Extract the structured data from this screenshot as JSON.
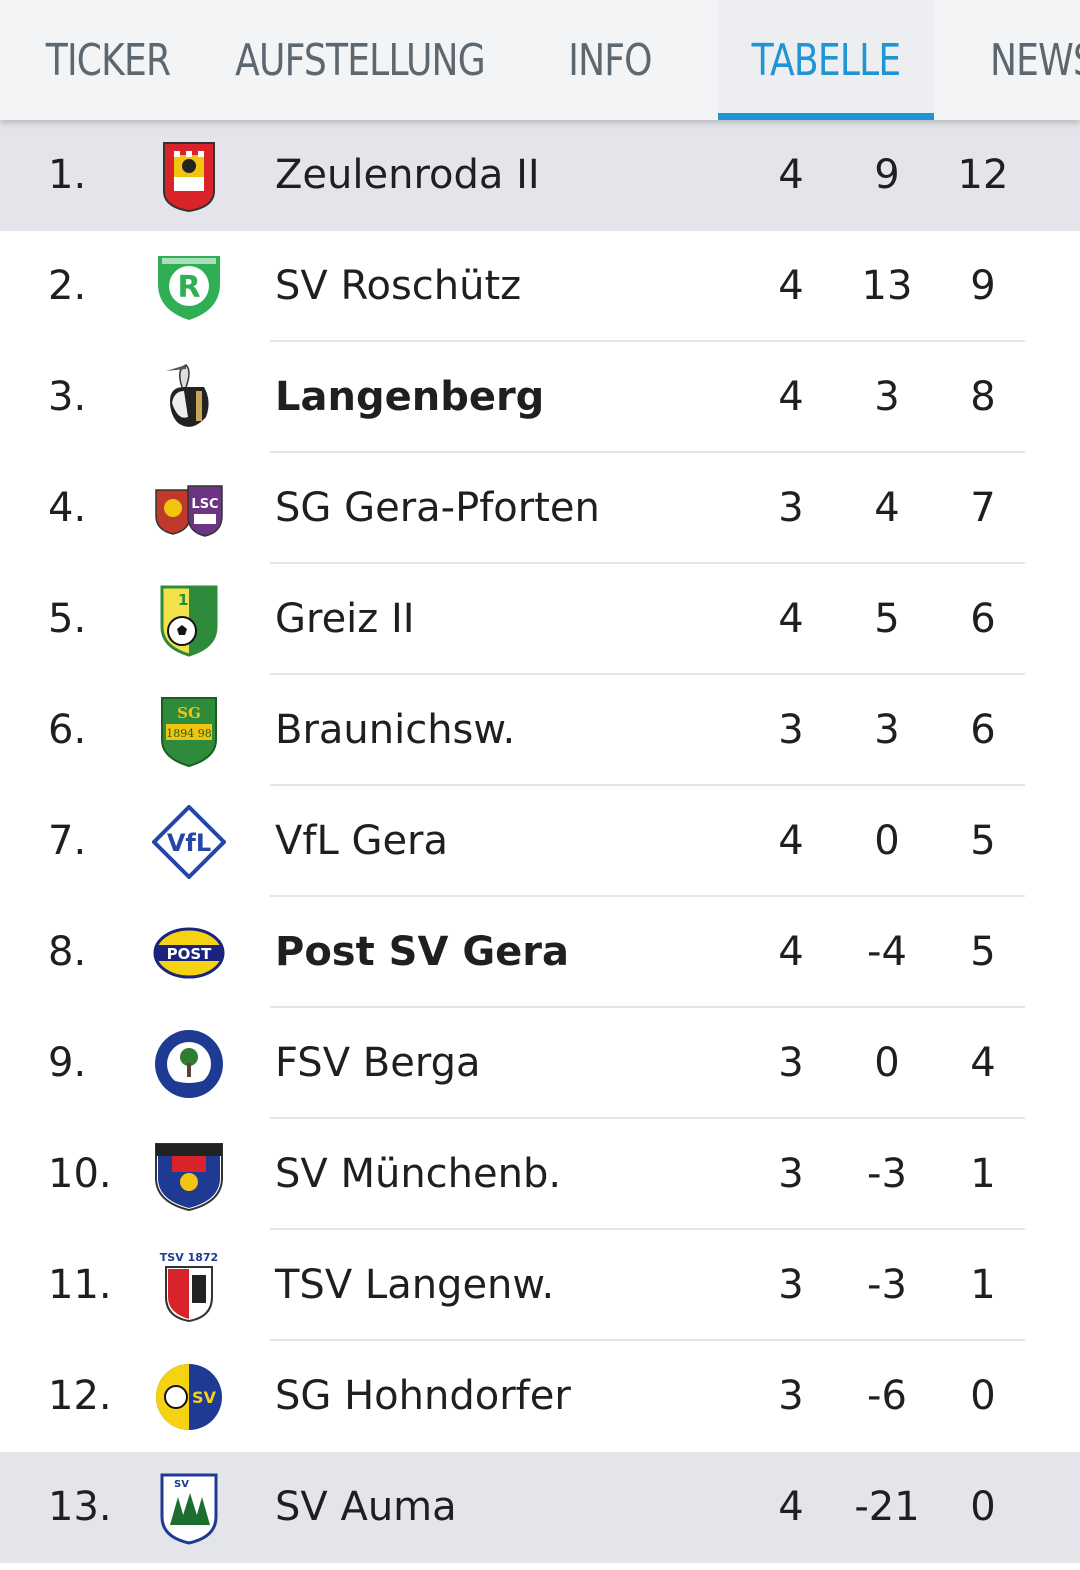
{
  "tabs": [
    {
      "label": "TICKER",
      "active": false
    },
    {
      "label": "AUFSTELLUNG",
      "active": false
    },
    {
      "label": "INFO",
      "active": false
    },
    {
      "label": "TABELLE",
      "active": true
    },
    {
      "label": "NEWS",
      "active": false
    }
  ],
  "colors": {
    "accent": "#1f95d4",
    "highlight_row": "#e3e5ea",
    "tab_text": "#5d6770"
  },
  "rows": [
    {
      "rank": "1.",
      "team": "Zeulenroda II",
      "games": "4",
      "diff": "9",
      "points": "12",
      "bold": false,
      "highlight": true,
      "crest": "crest-zeulenroda"
    },
    {
      "rank": "2.",
      "team": "SV Roschütz",
      "games": "4",
      "diff": "13",
      "points": "9",
      "bold": false,
      "highlight": false,
      "crest": "crest-roschuetz"
    },
    {
      "rank": "3.",
      "team": "Langenberg",
      "games": "4",
      "diff": "3",
      "points": "8",
      "bold": true,
      "highlight": false,
      "crest": "crest-langenberg"
    },
    {
      "rank": "4.",
      "team": "SG Gera-Pforten",
      "games": "3",
      "diff": "4",
      "points": "7",
      "bold": false,
      "highlight": false,
      "crest": "crest-gera-pforten"
    },
    {
      "rank": "5.",
      "team": "Greiz II",
      "games": "4",
      "diff": "5",
      "points": "6",
      "bold": false,
      "highlight": false,
      "crest": "crest-greiz"
    },
    {
      "rank": "6.",
      "team": "Braunichsw.",
      "games": "3",
      "diff": "3",
      "points": "6",
      "bold": false,
      "highlight": false,
      "crest": "crest-braunichswalde"
    },
    {
      "rank": "7.",
      "team": "VfL Gera",
      "games": "4",
      "diff": "0",
      "points": "5",
      "bold": false,
      "highlight": false,
      "crest": "crest-vfl-gera"
    },
    {
      "rank": "8.",
      "team": "Post SV Gera",
      "games": "4",
      "diff": "-4",
      "points": "5",
      "bold": true,
      "highlight": false,
      "crest": "crest-post-sv"
    },
    {
      "rank": "9.",
      "team": "FSV Berga",
      "games": "3",
      "diff": "0",
      "points": "4",
      "bold": false,
      "highlight": false,
      "crest": "crest-fsv-berga"
    },
    {
      "rank": "10.",
      "team": "SV Münchenb.",
      "games": "3",
      "diff": "-3",
      "points": "1",
      "bold": false,
      "highlight": false,
      "crest": "crest-muenchenbernsdorf"
    },
    {
      "rank": "11.",
      "team": "TSV Langenw.",
      "games": "3",
      "diff": "-3",
      "points": "1",
      "bold": false,
      "highlight": false,
      "crest": "crest-langenwetzendorf"
    },
    {
      "rank": "12.",
      "team": "SG Hohndorfer",
      "games": "3",
      "diff": "-6",
      "points": "0",
      "bold": false,
      "highlight": false,
      "crest": "crest-hohndorf"
    },
    {
      "rank": "13.",
      "team": "SV Auma",
      "games": "4",
      "diff": "-21",
      "points": "0",
      "bold": false,
      "highlight": true,
      "crest": "crest-auma"
    }
  ]
}
